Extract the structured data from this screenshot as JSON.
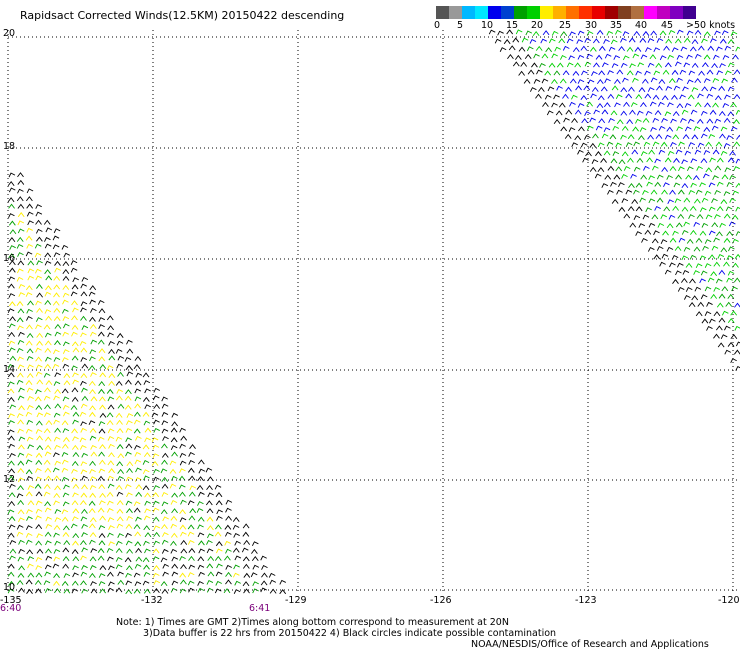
{
  "title": "Rapidsact Corrected Winds(12.5KM) 20150422 descending",
  "legend": {
    "colors": [
      "#555555",
      "#999999",
      "#00b8ff",
      "#00e8ff",
      "#0000ee",
      "#0040d0",
      "#00a000",
      "#00d000",
      "#ffee00",
      "#ffb000",
      "#ff7000",
      "#ff3000",
      "#e80000",
      "#a00000",
      "#804020",
      "#b07040",
      "#ff00ff",
      "#c000c0",
      "#8000c0",
      "#400090"
    ],
    "ticks": [
      "0",
      "5",
      "10",
      "15",
      "20",
      "25",
      "30",
      "35",
      "40",
      "45",
      ">50 knots"
    ]
  },
  "axes": {
    "lat_labels": [
      "20",
      "18",
      "16",
      "14",
      "12",
      "10"
    ],
    "lon_labels": [
      "-135",
      "-132",
      "-129",
      "-126",
      "-123",
      "-120"
    ]
  },
  "times": {
    "left": "6:40",
    "mid": "6:41"
  },
  "notes": {
    "line1": "Note: 1) Times are GMT 2)Times along bottom correspond to measurement at 20N",
    "line2": "3)Data buffer is 22 hrs from 20150422 4) Black circles indicate possible contamination",
    "credit": "NOAA/NESDIS/Office of Research and Applications"
  },
  "wind_colors": {
    "calm": "#000000",
    "yellow": "#ffee00",
    "green": "#00a000",
    "lightgreen": "#00d000",
    "blue": "#0000ee"
  }
}
